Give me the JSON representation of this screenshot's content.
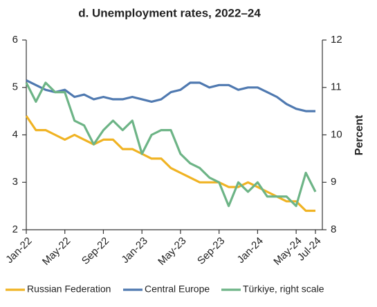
{
  "chart_data": {
    "type": "line",
    "title": "d. Unemployment rates, 2022–24",
    "y2label": "Percent",
    "categories": [
      "Jan-22",
      null,
      null,
      null,
      "May-22",
      null,
      null,
      null,
      "Sep-22",
      null,
      null,
      null,
      "Jan-23",
      null,
      null,
      null,
      "May-23",
      null,
      null,
      null,
      "Sep-23",
      null,
      null,
      null,
      "Jan-24",
      null,
      null,
      null,
      "May-24",
      null,
      "Jul-24"
    ],
    "series": [
      {
        "name": "Russian Federation",
        "color": "#f0b323",
        "values": [
          4.4,
          4.1,
          4.1,
          4.0,
          3.9,
          4.0,
          3.9,
          3.8,
          3.9,
          3.9,
          3.7,
          3.7,
          3.6,
          3.5,
          3.5,
          3.3,
          3.2,
          3.1,
          3.0,
          3.0,
          3.0,
          2.9,
          2.9,
          3.0,
          2.9,
          2.8,
          2.7,
          2.6,
          2.6,
          2.4,
          2.4
        ]
      },
      {
        "name": "Central Europe",
        "color": "#4f79b0",
        "values": [
          5.15,
          5.05,
          4.95,
          4.9,
          4.95,
          4.8,
          4.85,
          4.75,
          4.8,
          4.75,
          4.75,
          4.8,
          4.75,
          4.7,
          4.75,
          4.9,
          4.95,
          5.1,
          5.1,
          5.0,
          5.05,
          5.05,
          4.95,
          5.0,
          5.0,
          4.9,
          4.8,
          4.65,
          4.55,
          4.5,
          4.5
        ]
      },
      {
        "name": "Türkiye, right scale",
        "color": "#6db486",
        "axis": "y2",
        "values": [
          11.1,
          10.7,
          11.1,
          10.9,
          10.9,
          10.3,
          10.2,
          9.8,
          10.1,
          10.3,
          10.1,
          10.3,
          9.6,
          10.0,
          10.1,
          10.1,
          9.6,
          9.4,
          9.3,
          9.1,
          9.0,
          8.5,
          9.0,
          8.8,
          9.0,
          8.7,
          8.7,
          8.7,
          8.5,
          9.2,
          8.8
        ]
      }
    ],
    "ylim": [
      2,
      6
    ],
    "yticks": [
      2,
      3,
      4,
      5,
      6
    ],
    "y2lim": [
      8,
      12
    ],
    "y2ticks": [
      8,
      9,
      10,
      11,
      12
    ]
  }
}
